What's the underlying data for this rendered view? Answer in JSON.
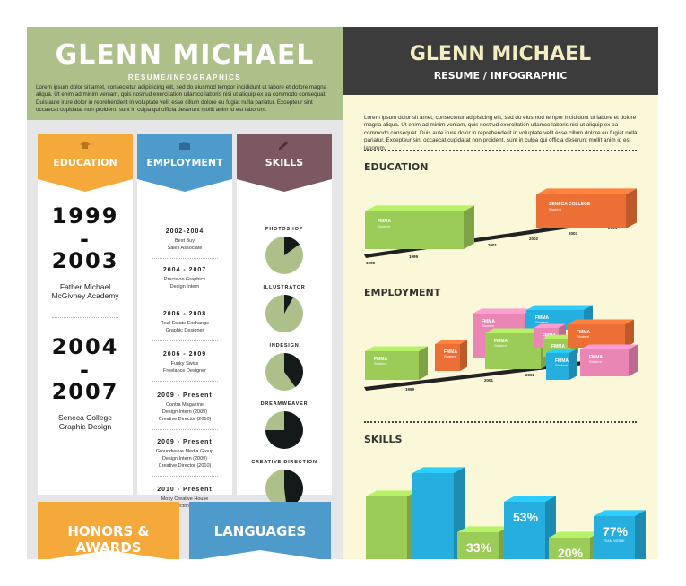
{
  "left": {
    "name": "GLENN MICHAEL",
    "subtitle": "RESUME/INFOGRAPHICS",
    "lorem": "Lorem ipsum dolor sit amet, consectetur adipisicing elit, sed do eiusmod tempor incididunt ut labore et dolore magna aliqua. Ut enim ad minim veniam, quis nostrud exercitation ullamco laboris nisi ut aliquip ex ea commodo consequat. Duis aute irure dolor in reprehenderit in voluptate velit esse cillum dolore eu fugiat nulla pariatur. Excepteur sint occaecat cupidatat non proident, sunt in culpa qui officia deserunt mollit anim id est laborum.",
    "colors": {
      "header": "#aec08a",
      "education": "#f6a93b",
      "employment": "#4d9acb",
      "skills": "#7b5862"
    },
    "education": {
      "title": "EDUCATION",
      "icon": "graduation-cap-icon",
      "entries": [
        {
          "start": "1999",
          "sep": "-",
          "end": "2003",
          "school": "Father Michael",
          "school2": "McGivney Academy"
        },
        {
          "start": "2004",
          "sep": "-",
          "end": "2007",
          "school": "Seneca College",
          "school2": "Graphic Design"
        }
      ]
    },
    "employment": {
      "title": "EMPLOYMENT",
      "icon": "briefcase-icon",
      "entries": [
        {
          "years": "2002-2004",
          "lines": [
            "Best Buy",
            "Sales Associate"
          ]
        },
        {
          "years": "2004 - 2007",
          "lines": [
            "Precision Graphics",
            "Design Intern"
          ]
        },
        {
          "years": "2006 - 2008",
          "lines": [
            "Real Estate Exchange",
            "Graphic Designer"
          ]
        },
        {
          "years": "2006 - 2009",
          "lines": [
            "Funky Swiss",
            "Freelance Designer"
          ]
        },
        {
          "years": "2009 - Present",
          "lines": [
            "Contra Magazine",
            "Design Intern (2009)",
            "Creative Director (2010)"
          ]
        },
        {
          "years": "2009 - Present",
          "lines": [
            "Groundwave Media Group",
            "Design Intern (2009)",
            "Creative Director (2010)"
          ]
        },
        {
          "years": "2010 - Present",
          "lines": [
            "Moxy Creative House",
            "Art Director/Partner"
          ]
        }
      ]
    },
    "skills": {
      "title": "SKILLS",
      "icon": "pencil-icon",
      "items": [
        {
          "name": "PHOTOSHOP",
          "dark": 0.15
        },
        {
          "name": "ILLUSTRATOR",
          "dark": 0.08
        },
        {
          "name": "INDESIGN",
          "dark": 0.4
        },
        {
          "name": "DREAMWEAVER",
          "dark": 0.75
        },
        {
          "name": "CREATIVE DIRECTION",
          "dark": 0.48
        }
      ]
    },
    "honors": {
      "title": "HONORS & AWARDS",
      "color": "#f6a93b"
    },
    "languages": {
      "title": "LANGUAGES",
      "color": "#4d9acb"
    }
  },
  "right": {
    "name": "GLENN MICHAEL",
    "subtitle": "RESUME / INFOGRAPHIC",
    "lorem": "Lorem ipsum dolor sit amet, consectetur adipisicing elit, sed do eiusmod tempor incididunt ut labore et dolore magna aliqua. Ut enim ad minim veniam, quis nostrud exercitation ullamco laboris nisi ut aliquip ex ea commodo consequat. Duis aute irure dolor in reprehenderit in voluptate velit esse cillum dolore eu fugiat nulla pariatur. Excepteur sint occaecat cupidatat non proident, sunt in culpa qui officia deserunt mollit anim id est laborum.",
    "education_title": "EDUCATION",
    "employment_title": "EMPLOYMENT",
    "skills_title": "SKILLS",
    "edu_ticks": [
      "1998",
      "1999",
      "2001",
      "2002",
      "2003",
      "2004"
    ],
    "edu_bars": [
      {
        "label": "FMMA",
        "sub": "Student",
        "color": "green"
      },
      {
        "label": "SENECA COLLEGE",
        "sub": "Student",
        "color": "orange"
      }
    ],
    "emp_ticks": [
      "1999",
      "2001",
      "2002",
      "2003",
      "2004"
    ],
    "emp_bars": [
      {
        "label": "FMMA",
        "sub": "Student",
        "color": "green"
      },
      {
        "label": "FMMA",
        "sub": "Student",
        "color": "orange"
      },
      {
        "label": "FMMA",
        "sub": "Student",
        "color": "pink"
      },
      {
        "label": "FMMA",
        "sub": "Student",
        "color": "green"
      },
      {
        "label": "FMMA",
        "sub": "Student",
        "color": "blue"
      },
      {
        "label": "FMMA",
        "sub": "Student",
        "color": "pink"
      },
      {
        "label": "FMMA",
        "sub": "Student",
        "color": "green"
      },
      {
        "label": "FMMA",
        "sub": "Student",
        "color": "orange"
      },
      {
        "label": "FMMA",
        "sub": "Student",
        "color": "blue"
      },
      {
        "label": "FMMA",
        "sub": "Student",
        "color": "pink"
      }
    ],
    "skill_bars": [
      {
        "value": "",
        "label": "",
        "color": "green"
      },
      {
        "value": "",
        "label": "",
        "color": "blue"
      },
      {
        "value": "33%",
        "label": "",
        "color": "green"
      },
      {
        "value": "53%",
        "label": "",
        "color": "blue"
      },
      {
        "value": "20%",
        "label": "DREAMWEAVER",
        "color": "green"
      },
      {
        "value": "77%",
        "label": "TEAM WORK",
        "color": "blue"
      }
    ],
    "colors": {
      "green": "#9ccc58",
      "orange": "#ec6f35",
      "pink": "#ea86b3",
      "blue": "#25aede",
      "header": "#3c3c3c",
      "background": "#fbf8d9"
    }
  }
}
